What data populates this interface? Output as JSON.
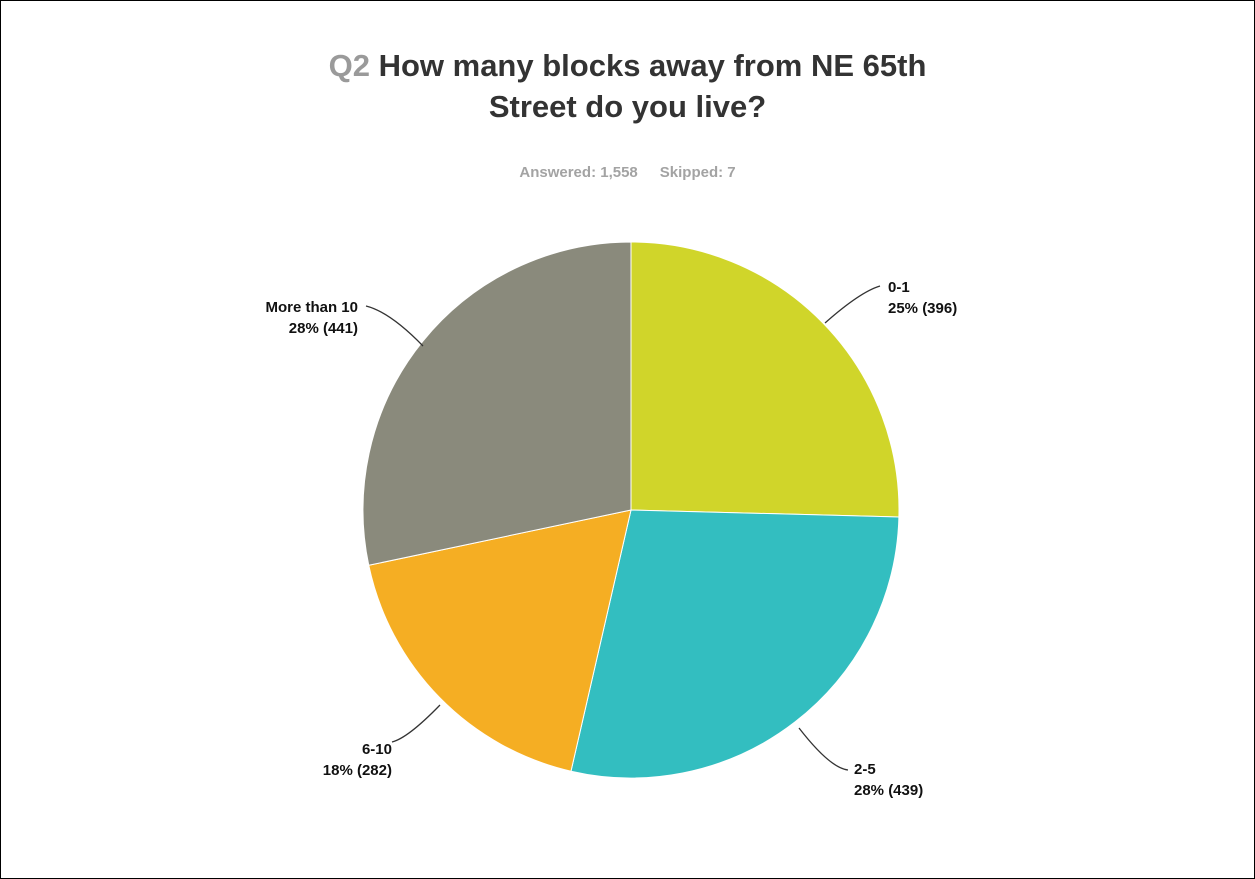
{
  "header": {
    "question_number": "Q2",
    "question_line1": "How many blocks away from NE 65th",
    "question_line2": "Street do you live?",
    "answered": "Answered: 1,558",
    "skipped": "Skipped: 7"
  },
  "chart_data": {
    "type": "pie",
    "title": "Q2 How many blocks away from NE 65th Street do you live?",
    "slices": [
      {
        "label": "0-1",
        "percent": "25%",
        "count": "(396)",
        "value": 396,
        "color": "#d0d52a"
      },
      {
        "label": "2-5",
        "percent": "28%",
        "count": "(439)",
        "value": 439,
        "color": "#33bec0"
      },
      {
        "label": "6-10",
        "percent": "18%",
        "count": "(282)",
        "value": 282,
        "color": "#f5ae23"
      },
      {
        "label": "More than 10",
        "percent": "28%",
        "count": "(441)",
        "value": 441,
        "color": "#8a8a7c"
      }
    ],
    "start_angle": "12 o'clock",
    "direction": "clockwise"
  }
}
